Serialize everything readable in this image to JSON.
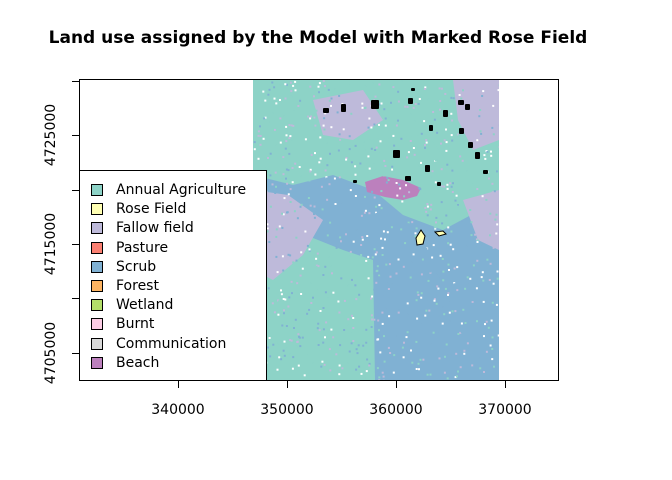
{
  "title": "Land use assigned by the Model with Marked Rose Field",
  "x_ticks": [
    "340000",
    "350000",
    "360000",
    "370000"
  ],
  "y_ticks": [
    "4705000",
    "4715000",
    "4725000"
  ],
  "legend": [
    {
      "label": "Annual Agriculture",
      "color": "#8DD3C7"
    },
    {
      "label": "Rose Field",
      "color": "#FFFFB3"
    },
    {
      "label": "Fallow field",
      "color": "#BEBADA"
    },
    {
      "label": "Pasture",
      "color": "#FB8072"
    },
    {
      "label": "Scrub",
      "color": "#80B1D3"
    },
    {
      "label": "Forest",
      "color": "#FDB462"
    },
    {
      "label": "Wetland",
      "color": "#B3DE69"
    },
    {
      "label": "Burnt",
      "color": "#FCCDE5"
    },
    {
      "label": "Communication",
      "color": "#D9D9D9"
    },
    {
      "label": "Beach",
      "color": "#BC80BD"
    }
  ],
  "map_colors": {
    "agriculture": "#8DD3C7",
    "scrub": "#80B1D3",
    "fallow": "#BEBADA",
    "beach": "#BC80BD",
    "rose": "#FFFFB3",
    "marked_polygons": "#000000"
  }
}
